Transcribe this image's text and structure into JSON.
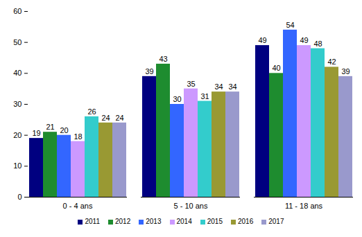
{
  "chart_data": {
    "type": "bar",
    "categories": [
      "0 - 4 ans",
      "5 - 10 ans",
      "11 - 18 ans"
    ],
    "series": [
      {
        "name": "2011",
        "color": "#000080",
        "values": [
          19,
          39,
          49
        ]
      },
      {
        "name": "2012",
        "color": "#1e8c2f",
        "values": [
          21,
          43,
          40
        ]
      },
      {
        "name": "2013",
        "color": "#3366ff",
        "values": [
          20,
          30,
          54
        ]
      },
      {
        "name": "2014",
        "color": "#cc99ff",
        "values": [
          18,
          35,
          49
        ]
      },
      {
        "name": "2015",
        "color": "#33cccc",
        "values": [
          26,
          31,
          48
        ]
      },
      {
        "name": "2016",
        "color": "#999933",
        "values": [
          24,
          34,
          42
        ]
      },
      {
        "name": "2017",
        "color": "#9999cc",
        "values": [
          24,
          34,
          39
        ]
      }
    ],
    "ylim": [
      0,
      60
    ],
    "yticks": [
      0,
      10,
      20,
      30,
      40,
      50,
      60
    ],
    "grid": false,
    "data_labels": true,
    "legend": "bottom"
  }
}
